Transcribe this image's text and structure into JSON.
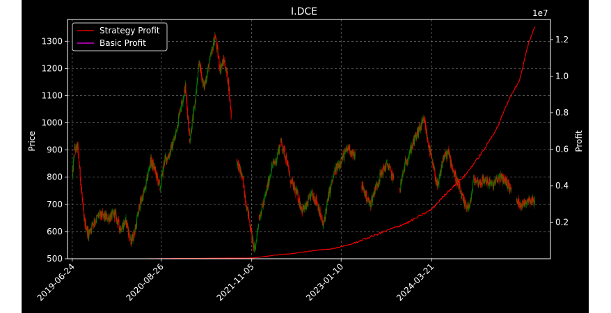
{
  "chart_data": {
    "type": "line",
    "title": "I.DCE",
    "xlabel": "",
    "ylabel": "Price",
    "ylabel_right": "Profit",
    "right_axis_multiplier": "1e7",
    "x_range": [
      "2019-06-01",
      "2025-10-15"
    ],
    "ylim": [
      500,
      1380
    ],
    "ylim_right": [
      0.0,
      1.31
    ],
    "x_tick_labels": [
      "2019-06-24",
      "2020-08-26",
      "2021-11-05",
      "2023-01-10",
      "2024-03-21"
    ],
    "y_ticks": [
      500,
      600,
      700,
      800,
      900,
      1000,
      1100,
      1200,
      1300
    ],
    "y_ticks_right": [
      0.2,
      0.4,
      0.6,
      0.8,
      1.0,
      1.2
    ],
    "grid": true,
    "legend_position": "top-left",
    "colors": {
      "background": "#000000",
      "up": "#008000",
      "down": "#ff0000",
      "strategy": "#ff0000",
      "basic": "#ff00ff",
      "axis": "#ffffff",
      "grid": "#888888"
    },
    "price_path": [
      [
        "2019-06-24",
        800
      ],
      [
        "2019-07-05",
        900
      ],
      [
        "2019-07-20",
        910
      ],
      [
        "2019-08-05",
        770
      ],
      [
        "2019-08-20",
        640
      ],
      [
        "2019-09-10",
        590
      ],
      [
        "2019-10-01",
        630
      ],
      [
        "2019-11-01",
        660
      ],
      [
        "2019-12-15",
        650
      ],
      [
        "2020-01-15",
        665
      ],
      [
        "2020-02-10",
        610
      ],
      [
        "2020-03-10",
        640
      ],
      [
        "2020-04-01",
        560
      ],
      [
        "2020-04-20",
        600
      ],
      [
        "2020-05-15",
        700
      ],
      [
        "2020-06-10",
        760
      ],
      [
        "2020-07-05",
        860
      ],
      [
        "2020-07-25",
        830
      ],
      [
        "2020-08-20",
        760
      ],
      [
        "2020-09-10",
        860
      ],
      [
        "2020-10-01",
        880
      ],
      [
        "2020-11-01",
        950
      ],
      [
        "2020-11-25",
        1050
      ],
      [
        "2020-12-20",
        1130
      ],
      [
        "2021-01-10",
        940
      ],
      [
        "2021-02-01",
        1050
      ],
      [
        "2021-02-25",
        1220
      ],
      [
        "2021-03-20",
        1130
      ],
      [
        "2021-04-15",
        1220
      ],
      [
        "2021-05-12",
        1320
      ],
      [
        "2021-06-05",
        1200
      ],
      [
        "2021-06-25",
        1230
      ],
      [
        "2021-07-15",
        1150
      ],
      [
        "2021-07-30",
        1020
      ],
      null,
      [
        "2021-08-25",
        860
      ],
      [
        "2021-09-20",
        800
      ],
      [
        "2021-10-10",
        700
      ],
      [
        "2021-10-25",
        640
      ],
      [
        "2021-11-10",
        560
      ],
      [
        "2021-11-20",
        530
      ],
      [
        "2021-12-10",
        650
      ],
      [
        "2022-01-10",
        730
      ],
      [
        "2022-02-10",
        840
      ],
      [
        "2022-03-01",
        860
      ],
      [
        "2022-03-25",
        930
      ],
      [
        "2022-04-20",
        870
      ],
      [
        "2022-05-10",
        790
      ],
      [
        "2022-06-10",
        740
      ],
      [
        "2022-07-05",
        680
      ],
      [
        "2022-07-25",
        690
      ],
      [
        "2022-08-20",
        740
      ],
      [
        "2022-09-15",
        710
      ],
      [
        "2022-10-15",
        620
      ],
      [
        "2022-11-10",
        730
      ],
      [
        "2022-12-10",
        820
      ],
      [
        "2023-01-15",
        870
      ],
      [
        "2023-02-15",
        910
      ],
      [
        "2023-03-10",
        880
      ],
      [
        "2023-03-20",
        880
      ],
      null,
      [
        "2023-04-20",
        770
      ],
      [
        "2023-05-10",
        730
      ],
      [
        "2023-05-30",
        700
      ],
      [
        "2023-06-20",
        750
      ],
      [
        "2023-07-20",
        810
      ],
      [
        "2023-08-20",
        850
      ],
      [
        "2023-09-20",
        790
      ],
      null,
      [
        "2023-10-20",
        760
      ],
      [
        "2023-11-15",
        850
      ],
      [
        "2023-12-10",
        900
      ],
      [
        "2024-01-05",
        950
      ],
      [
        "2024-01-25",
        980
      ],
      [
        "2024-02-15",
        1010
      ],
      [
        "2024-03-01",
        940
      ],
      [
        "2024-03-25",
        850
      ],
      [
        "2024-04-20",
        760
      ],
      [
        "2024-05-15",
        870
      ],
      [
        "2024-06-10",
        890
      ],
      [
        "2024-07-05",
        820
      ],
      [
        "2024-08-01",
        760
      ],
      [
        "2024-08-25",
        700
      ],
      [
        "2024-09-20",
        690
      ],
      [
        "2024-10-10",
        790
      ],
      [
        "2024-11-05",
        780
      ],
      [
        "2024-12-05",
        790
      ],
      [
        "2025-01-10",
        770
      ],
      [
        "2025-02-10",
        800
      ],
      [
        "2025-03-10",
        790
      ],
      [
        "2025-04-10",
        750
      ],
      null,
      [
        "2025-05-05",
        710
      ],
      [
        "2025-06-01",
        700
      ],
      [
        "2025-07-01",
        720
      ],
      [
        "2025-08-01",
        710
      ]
    ],
    "series": [
      {
        "name": "Strategy Profit",
        "points": [
          [
            "2019-06-24",
            0.0
          ],
          [
            "2020-06-01",
            0.0
          ],
          [
            "2021-01-01",
            0.002
          ],
          [
            "2021-11-10",
            0.004
          ],
          [
            "2022-03-01",
            0.02
          ],
          [
            "2022-06-01",
            0.03
          ],
          [
            "2022-09-01",
            0.045
          ],
          [
            "2022-12-01",
            0.055
          ],
          [
            "2023-03-01",
            0.08
          ],
          [
            "2023-06-01",
            0.12
          ],
          [
            "2023-09-01",
            0.16
          ],
          [
            "2023-12-01",
            0.2
          ],
          [
            "2024-03-21",
            0.27
          ],
          [
            "2024-06-01",
            0.36
          ],
          [
            "2024-09-01",
            0.46
          ],
          [
            "2024-12-01",
            0.6
          ],
          [
            "2025-02-01",
            0.72
          ],
          [
            "2025-04-01",
            0.88
          ],
          [
            "2025-05-20",
            0.98
          ],
          [
            "2025-07-01",
            1.18
          ],
          [
            "2025-08-01",
            1.27
          ]
        ]
      },
      {
        "name": "Basic Profit",
        "points": []
      }
    ]
  }
}
